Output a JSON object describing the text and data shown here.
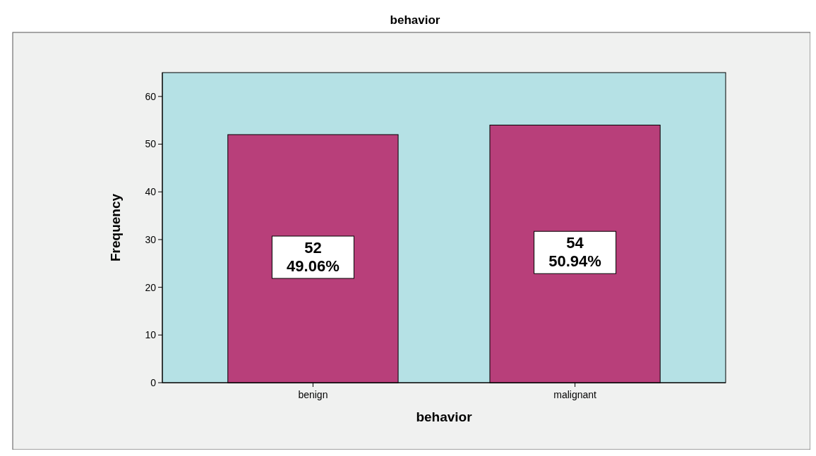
{
  "chart_data": {
    "type": "bar",
    "title": "behavior",
    "xlabel": "behavior",
    "ylabel": "Frequency",
    "categories": [
      "benign",
      "malignant"
    ],
    "values": [
      52,
      54
    ],
    "color": "#b83f7a",
    "value_labels": [
      "52\n49.06%",
      "54\n50.94%"
    ],
    "ylim": [
      0,
      65
    ],
    "yticks": [
      0,
      10,
      20,
      30,
      40,
      50,
      60
    ],
    "grid": false
  }
}
